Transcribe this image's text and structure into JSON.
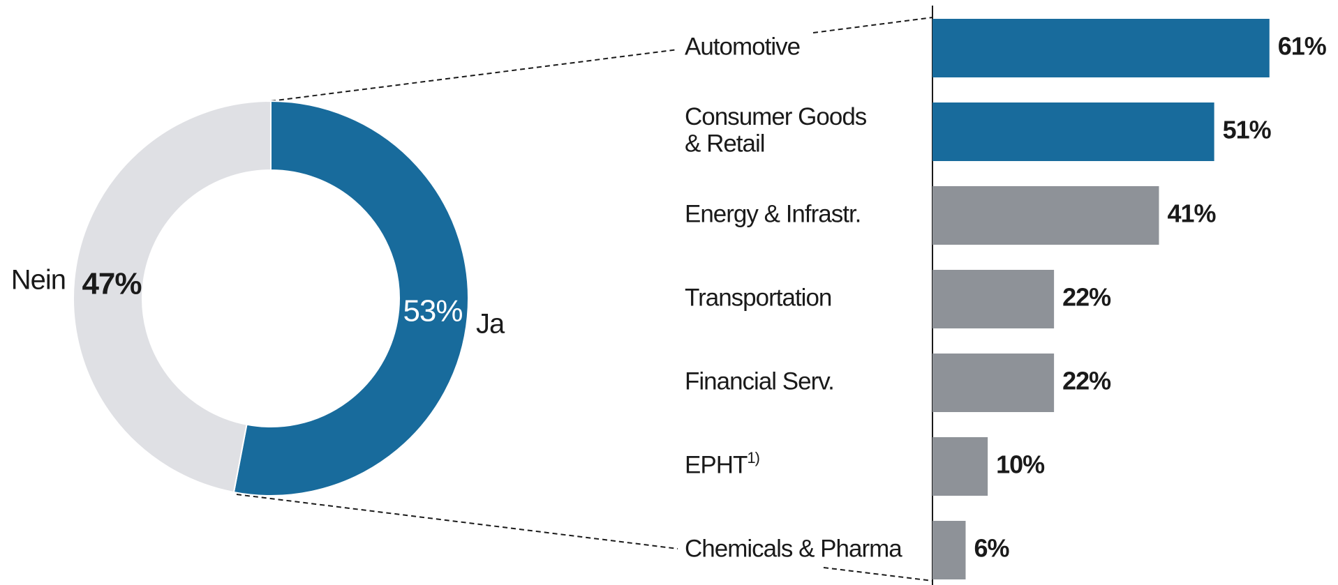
{
  "chart_data": [
    {
      "type": "pie",
      "categories": [
        "Ja",
        "Nein"
      ],
      "values": [
        53,
        47
      ],
      "value_labels": [
        "53%",
        "47%"
      ],
      "colors": [
        "#186b9c",
        "#dfe0e4"
      ]
    },
    {
      "type": "bar",
      "orientation": "horizontal",
      "categories": [
        "Automotive",
        "Consumer Goods\n& Retail",
        "Energy & Infrastr.",
        "Transportation",
        "Financial Serv.",
        "EPHT",
        "Chemicals & Pharma"
      ],
      "category_notes": [
        null,
        null,
        null,
        null,
        null,
        "1)",
        null
      ],
      "values": [
        61,
        51,
        41,
        22,
        22,
        10,
        6
      ],
      "value_labels": [
        "61%",
        "51%",
        "41%",
        "22%",
        "22%",
        "10%",
        "6%"
      ],
      "colors": [
        "#186b9c",
        "#186b9c",
        "#8e9298",
        "#8e9298",
        "#8e9298",
        "#8e9298",
        "#8e9298"
      ],
      "xlim": [
        0,
        70
      ]
    }
  ]
}
